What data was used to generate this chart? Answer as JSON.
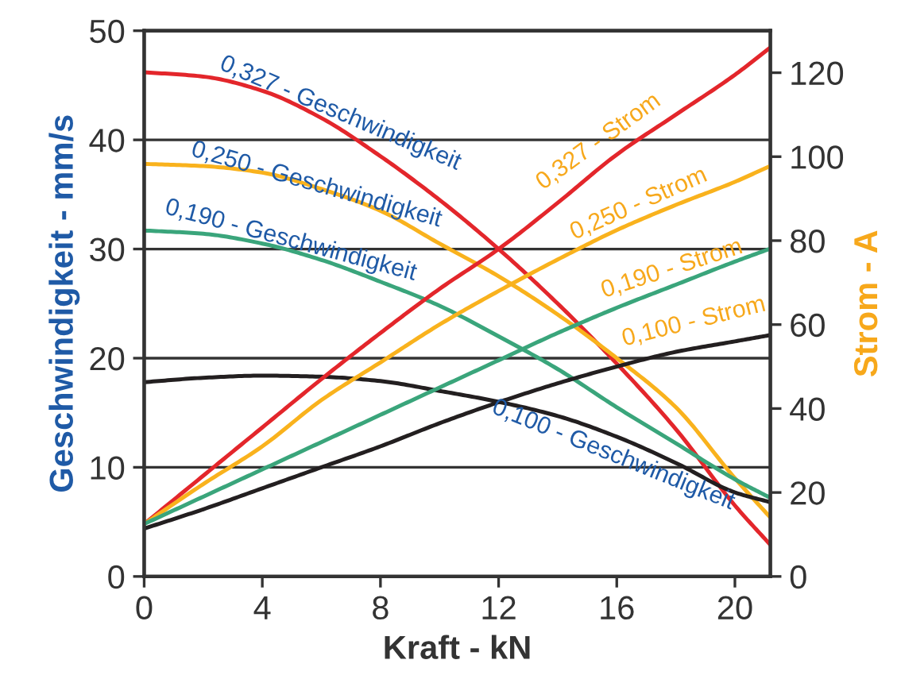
{
  "chart_data": {
    "type": "line",
    "xlabel": "Kraft - kN",
    "ylabel": "Geschwindigkeit - mm/s",
    "y2label": "Strom - A",
    "xlim": [
      0,
      21.2
    ],
    "xticks": [
      0,
      4,
      8,
      12,
      16,
      20
    ],
    "ylim": [
      0,
      50
    ],
    "yticks": [
      0,
      10,
      20,
      30,
      40,
      50
    ],
    "y2lim": [
      0,
      130
    ],
    "y2ticks": [
      0,
      20,
      40,
      60,
      80,
      100,
      120
    ],
    "grid": "y",
    "legend": false,
    "marker": "none",
    "line_style": "solid",
    "x": [
      0,
      2,
      4,
      6,
      8,
      10,
      12,
      14,
      16,
      18,
      20,
      21.2
    ],
    "series": [
      {
        "color": "#e3262b",
        "values": [
          46.2,
          45.8,
          44.5,
          42,
          38.5,
          34.5,
          30,
          25,
          19.5,
          13.5,
          6.5,
          2.9
        ]
      },
      {
        "color": "#f9b21d",
        "values": [
          37.8,
          37.6,
          37,
          35.5,
          33.5,
          30.5,
          27.5,
          24,
          20,
          15.5,
          9,
          5.4
        ]
      },
      {
        "color": "#3aa57b",
        "values": [
          31.7,
          31.4,
          30.5,
          29,
          27,
          24.8,
          22,
          19,
          15.5,
          12.2,
          8.9,
          7.2
        ]
      },
      {
        "color": "#231f20",
        "values": [
          17.8,
          18.2,
          18.4,
          18.3,
          17.9,
          17,
          16,
          14.7,
          12.8,
          10.4,
          7.7,
          6.8
        ]
      },
      {
        "color": "#e3262b",
        "axis": "y2",
        "values": [
          12.5,
          24,
          35.5,
          47,
          58,
          68.5,
          78,
          89,
          100.5,
          110,
          119.5,
          126
        ]
      },
      {
        "color": "#f9b21d",
        "axis": "y2",
        "values": [
          12.5,
          22,
          31,
          42,
          51,
          60,
          68,
          75.5,
          82.5,
          88.5,
          94,
          97.8
        ]
      },
      {
        "color": "#3aa57b",
        "axis": "y2",
        "values": [
          12.5,
          19,
          25.5,
          32,
          38.5,
          45,
          51.5,
          58,
          64,
          69.5,
          75,
          78.1
        ]
      },
      {
        "color": "#231f20",
        "axis": "y2",
        "values": [
          11.4,
          16,
          21,
          26,
          31,
          36.5,
          41.5,
          46,
          50,
          53.5,
          56,
          57.5
        ]
      }
    ],
    "annotations": [
      "0,327 - Geschwindigkeit",
      "0,250 - Geschwindigkeit",
      "0,190 - Geschwindigkeit",
      "0,100 - Geschwindigkeit",
      "0,327 - Strom",
      "0,250 - Strom",
      "0,190 - Strom",
      "0,100 - Strom"
    ]
  }
}
